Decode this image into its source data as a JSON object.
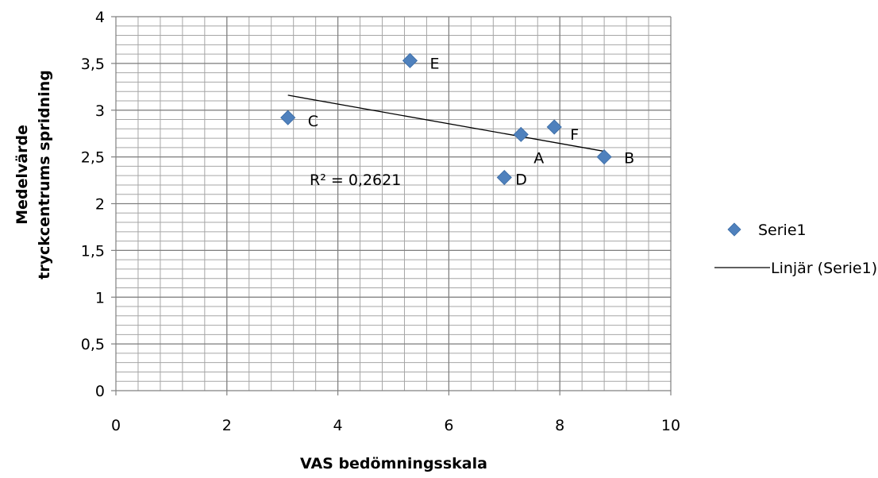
{
  "chart_data": {
    "type": "scatter",
    "title": "",
    "xlabel": "VAS bedömningsskala",
    "ylabel_lines": [
      "Medelvärde",
      "tryckcentrums spridning"
    ],
    "xlim": [
      0,
      10
    ],
    "ylim": [
      0,
      4
    ],
    "x_ticks": [
      0,
      2,
      4,
      6,
      8,
      10
    ],
    "x_tick_labels": [
      "0",
      "2",
      "4",
      "6",
      "8",
      "10"
    ],
    "y_ticks": [
      0,
      0.5,
      1,
      1.5,
      2,
      2.5,
      3,
      3.5,
      4
    ],
    "y_tick_labels": [
      "0",
      "0,5",
      "1",
      "1,5",
      "2",
      "2,5",
      "3",
      "3,5",
      "4"
    ],
    "grid": true,
    "minor_x_step": 0.4,
    "minor_y_step": 0.1,
    "series": [
      {
        "name": "Serie1",
        "color": "#4F81BD",
        "marker": "diamond",
        "points": [
          {
            "label": "A",
            "x": 7.3,
            "y": 2.74
          },
          {
            "label": "B",
            "x": 8.8,
            "y": 2.5
          },
          {
            "label": "C",
            "x": 3.1,
            "y": 2.92
          },
          {
            "label": "D",
            "x": 7.0,
            "y": 2.28
          },
          {
            "label": "E",
            "x": 5.3,
            "y": 3.53
          },
          {
            "label": "F",
            "x": 7.9,
            "y": 2.82
          }
        ]
      }
    ],
    "trendline": {
      "name": "Linjär (Serie1)",
      "type": "linear",
      "color": "#000000",
      "x_start": 3.1,
      "y_start": 3.16,
      "x_end": 8.8,
      "y_end": 2.56,
      "r2_text": "R² = 0,2621"
    },
    "legend": {
      "placement": "right",
      "entries": [
        {
          "label": "Serie1",
          "symbol": "diamond",
          "color": "#4F81BD"
        },
        {
          "label": "Linjär (Serie1)",
          "symbol": "line",
          "color": "#000000"
        }
      ]
    },
    "colors": {
      "grid": "#A6A6A6",
      "axis": "#808080"
    }
  }
}
